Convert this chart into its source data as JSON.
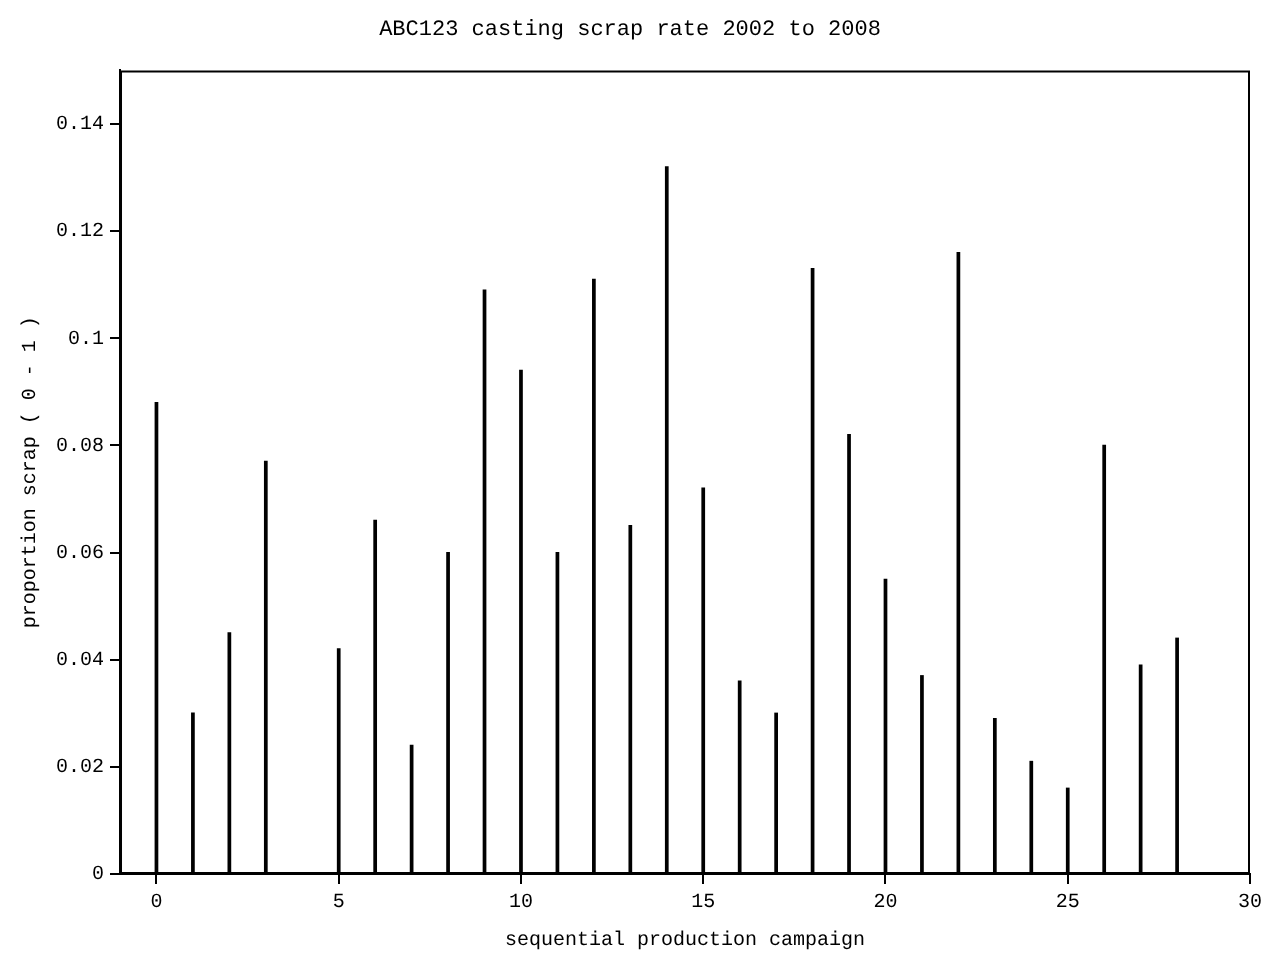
{
  "chart_data": {
    "type": "bar",
    "title": "ABC123 casting scrap rate 2002 to 2008",
    "xlabel": "sequential production campaign",
    "ylabel": "proportion scrap ( 0 - 1 )",
    "x": [
      0,
      1,
      2,
      3,
      4,
      5,
      6,
      7,
      8,
      9,
      10,
      11,
      12,
      13,
      14,
      15,
      16,
      17,
      18,
      19,
      20,
      21,
      22,
      23,
      24,
      25,
      26,
      27,
      28
    ],
    "values": [
      0.088,
      0.03,
      0.045,
      0.077,
      null,
      0.042,
      0.066,
      0.024,
      0.06,
      0.109,
      0.094,
      0.06,
      0.111,
      0.065,
      0.132,
      0.072,
      0.036,
      0.03,
      0.113,
      0.082,
      0.055,
      0.037,
      0.116,
      0.029,
      0.021,
      0.016,
      0.08,
      0.039,
      0.044
    ],
    "color": "#000000",
    "xlim": [
      -1,
      30
    ],
    "xticks": [
      0,
      5,
      10,
      15,
      20,
      25,
      30
    ],
    "ylim": [
      0,
      0.15
    ],
    "yticks": [
      0,
      0.02,
      0.04,
      0.06,
      0.08,
      0.1,
      0.12,
      0.14
    ],
    "grid": false,
    "legend": false
  }
}
